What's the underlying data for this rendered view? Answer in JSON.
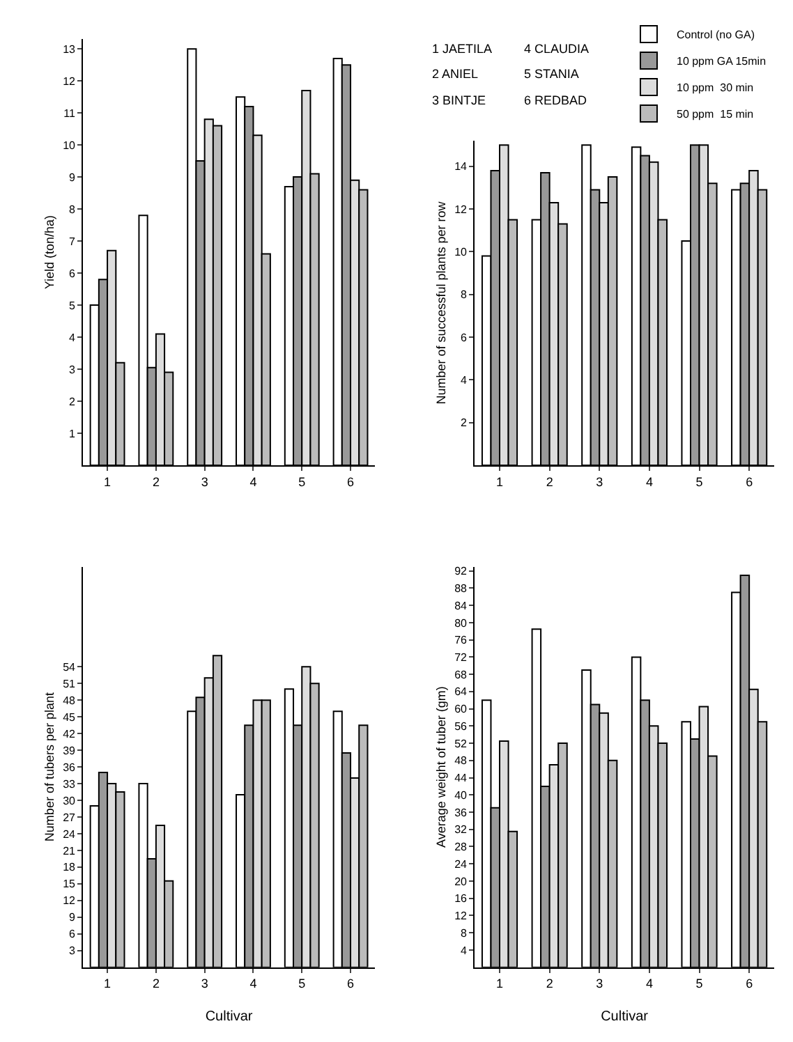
{
  "chart_data": [
    {
      "type": "bar",
      "ylabel": "Yield (ton/ha)",
      "categories": [
        "1",
        "2",
        "3",
        "4",
        "5",
        "6"
      ],
      "ylim": [
        0,
        13.3
      ],
      "yticks": [
        1,
        2,
        3,
        4,
        5,
        6,
        7,
        8,
        9,
        10,
        11,
        12,
        13
      ],
      "series": [
        {
          "color": "#ffffff",
          "values": [
            5.0,
            7.8,
            13.0,
            11.5,
            8.7,
            12.7
          ]
        },
        {
          "color": "#999999",
          "values": [
            5.8,
            3.05,
            9.5,
            11.2,
            9.0,
            12.5
          ]
        },
        {
          "color": "#dddddd",
          "values": [
            6.7,
            4.1,
            10.8,
            10.3,
            11.7,
            8.9
          ]
        },
        {
          "color": "#bbbbbb",
          "values": [
            3.2,
            2.9,
            10.6,
            6.6,
            9.1,
            8.6
          ]
        }
      ]
    },
    {
      "type": "bar",
      "ylabel": "Number of successful plants per row",
      "categories": [
        "1",
        "2",
        "3",
        "4",
        "5",
        "6"
      ],
      "ylim": [
        0,
        15.2
      ],
      "yticks": [
        2,
        4,
        6,
        8,
        10,
        12,
        14
      ],
      "legend": "top right",
      "annotations": [
        "1 JAETILA",
        "2 ANIEL",
        "3 BINTJE",
        "4 CLAUDIA",
        "5 STANIA",
        "6 REDBAD"
      ],
      "series": [
        {
          "name": "Control (no GA)",
          "color": "#ffffff",
          "values": [
            9.8,
            11.5,
            15.0,
            14.9,
            10.5,
            12.9
          ]
        },
        {
          "name": "10 ppm GA 15min",
          "color": "#999999",
          "values": [
            13.8,
            13.7,
            12.9,
            14.5,
            15.0,
            13.2
          ]
        },
        {
          "name": "10 ppm  30 min",
          "color": "#dddddd",
          "values": [
            15.0,
            12.3,
            12.3,
            14.2,
            15.0,
            13.8
          ]
        },
        {
          "name": "50 ppm  15 min",
          "color": "#bbbbbb",
          "values": [
            11.5,
            11.3,
            13.5,
            11.5,
            13.2,
            12.9
          ]
        }
      ]
    },
    {
      "type": "bar",
      "xlabel": "Cultivar",
      "ylabel": "Number of tubers per plant",
      "categories": [
        "1",
        "2",
        "3",
        "4",
        "5",
        "6"
      ],
      "ylim": [
        0,
        72
      ],
      "yticks": [
        3,
        6,
        9,
        12,
        15,
        18,
        21,
        24,
        27,
        30,
        33,
        36,
        39,
        42,
        45,
        48,
        51,
        54
      ],
      "series": [
        {
          "color": "#ffffff",
          "values": [
            29,
            33,
            46,
            31,
            50,
            46
          ]
        },
        {
          "color": "#999999",
          "values": [
            35,
            19.5,
            48.5,
            43.5,
            43.5,
            38.5
          ]
        },
        {
          "color": "#dddddd",
          "values": [
            33,
            25.5,
            52,
            48,
            54,
            34
          ]
        },
        {
          "color": "#bbbbbb",
          "values": [
            31.5,
            15.5,
            56,
            48,
            51,
            43.5
          ]
        }
      ]
    },
    {
      "type": "bar",
      "xlabel": "Cultivar",
      "ylabel": "Average weight of tuber (gm)",
      "categories": [
        "1",
        "2",
        "3",
        "4",
        "5",
        "6"
      ],
      "ylim": [
        0,
        93
      ],
      "yticks": [
        4,
        8,
        12,
        16,
        20,
        24,
        28,
        32,
        36,
        40,
        44,
        48,
        52,
        56,
        60,
        64,
        68,
        72,
        76,
        80,
        84,
        88,
        92
      ],
      "series": [
        {
          "color": "#ffffff",
          "values": [
            62,
            78.5,
            69,
            72,
            57,
            87
          ]
        },
        {
          "color": "#999999",
          "values": [
            37,
            42,
            61,
            62,
            53,
            91
          ]
        },
        {
          "color": "#dddddd",
          "values": [
            52.5,
            47,
            59,
            56,
            60.5,
            64.5
          ]
        },
        {
          "color": "#bbbbbb",
          "values": [
            31.5,
            52,
            48,
            52,
            49,
            57
          ]
        }
      ]
    }
  ]
}
